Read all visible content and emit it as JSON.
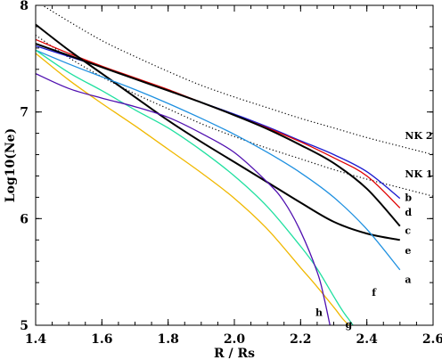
{
  "chart_data": {
    "type": "line",
    "title": "",
    "xlabel": "R / Rs",
    "ylabel": "Log10(Ne)",
    "xlim": [
      1.4,
      2.6
    ],
    "ylim": [
      5,
      8
    ],
    "xticks": [
      1.4,
      1.6,
      1.8,
      2.0,
      2.2,
      2.4,
      2.6
    ],
    "xtick_labels": [
      "1.4",
      "1.6",
      "1.8",
      "2.0",
      "2.2",
      "2.4",
      "2.6"
    ],
    "yticks": [
      5,
      6,
      7,
      8
    ],
    "ytick_labels": [
      "5",
      "6",
      "7",
      "8"
    ],
    "grid": false,
    "legend": "none",
    "series": [
      {
        "label": "NK 2",
        "color": "#000000",
        "dash": "dotted",
        "width": 1.2,
        "x": [
          1.4,
          1.5,
          1.6,
          1.7,
          1.8,
          1.9,
          2.0,
          2.1,
          2.2,
          2.3,
          2.4,
          2.5,
          2.6
        ],
        "y": [
          8.04,
          7.85,
          7.67,
          7.52,
          7.38,
          7.25,
          7.14,
          7.04,
          6.94,
          6.85,
          6.76,
          6.68,
          6.6
        ]
      },
      {
        "label": "NK 1",
        "color": "#000000",
        "dash": "dotted",
        "width": 1.2,
        "x": [
          1.4,
          1.5,
          1.6,
          1.7,
          1.8,
          1.9,
          2.0,
          2.1,
          2.2,
          2.3,
          2.4,
          2.5,
          2.6
        ],
        "y": [
          7.72,
          7.51,
          7.33,
          7.17,
          7.03,
          6.89,
          6.77,
          6.66,
          6.56,
          6.46,
          6.37,
          6.29,
          6.21
        ]
      },
      {
        "label": "b",
        "color": "#1a1ad0",
        "width": 1.3,
        "x": [
          1.4,
          1.5,
          1.6,
          1.7,
          1.8,
          1.9,
          2.0,
          2.1,
          2.2,
          2.3,
          2.4,
          2.5
        ],
        "y": [
          7.62,
          7.52,
          7.42,
          7.31,
          7.2,
          7.09,
          6.98,
          6.86,
          6.73,
          6.6,
          6.44,
          6.19
        ]
      },
      {
        "label": "d",
        "color": "#e00000",
        "width": 1.3,
        "x": [
          1.4,
          1.5,
          1.6,
          1.7,
          1.8,
          1.9,
          2.0,
          2.1,
          2.2,
          2.3,
          2.4,
          2.5
        ],
        "y": [
          7.68,
          7.55,
          7.43,
          7.32,
          7.21,
          7.09,
          6.97,
          6.85,
          6.72,
          6.57,
          6.4,
          6.1
        ]
      },
      {
        "label": "c",
        "color": "#000000",
        "width": 2.0,
        "x": [
          1.4,
          1.5,
          1.6,
          1.7,
          1.8,
          1.9,
          2.0,
          2.1,
          2.2,
          2.3,
          2.4,
          2.5
        ],
        "y": [
          7.64,
          7.53,
          7.42,
          7.31,
          7.2,
          7.09,
          6.97,
          6.84,
          6.69,
          6.52,
          6.28,
          5.93
        ]
      },
      {
        "label": "e",
        "color": "#000000",
        "width": 2.0,
        "x": [
          1.4,
          1.5,
          1.6,
          1.7,
          1.8,
          1.9,
          2.0,
          2.1,
          2.2,
          2.3,
          2.4,
          2.5
        ],
        "y": [
          7.82,
          7.58,
          7.36,
          7.14,
          6.92,
          6.72,
          6.53,
          6.34,
          6.15,
          5.97,
          5.86,
          5.8
        ]
      },
      {
        "label": "a",
        "color": "#1e90e0",
        "width": 1.3,
        "x": [
          1.4,
          1.5,
          1.6,
          1.7,
          1.8,
          1.9,
          2.0,
          2.1,
          2.2,
          2.3,
          2.4,
          2.5
        ],
        "y": [
          7.58,
          7.45,
          7.33,
          7.21,
          7.08,
          6.94,
          6.79,
          6.62,
          6.43,
          6.2,
          5.9,
          5.52
        ]
      },
      {
        "label": "f",
        "color": "#20e0a0",
        "width": 1.3,
        "x": [
          1.4,
          1.5,
          1.6,
          1.7,
          1.8,
          1.9,
          2.0,
          2.1,
          2.2,
          2.25,
          2.3,
          2.33,
          2.36,
          2.38
        ],
        "y": [
          7.58,
          7.37,
          7.2,
          7.02,
          6.85,
          6.64,
          6.4,
          6.11,
          5.74,
          5.53,
          5.27,
          5.12,
          4.99,
          4.85
        ]
      },
      {
        "label": "g",
        "color": "#f0b800",
        "width": 1.3,
        "x": [
          1.4,
          1.5,
          1.6,
          1.7,
          1.8,
          1.9,
          2.0,
          2.1,
          2.2,
          2.25,
          2.3,
          2.33,
          2.36
        ],
        "y": [
          7.55,
          7.3,
          7.08,
          6.87,
          6.65,
          6.43,
          6.19,
          5.9,
          5.54,
          5.36,
          5.17,
          5.05,
          4.96
        ]
      },
      {
        "label": "h",
        "color": "#5010b0",
        "width": 1.3,
        "x": [
          1.4,
          1.5,
          1.6,
          1.7,
          1.8,
          1.9,
          2.0,
          2.1,
          2.15,
          2.2,
          2.25,
          2.27,
          2.29
        ],
        "y": [
          7.36,
          7.22,
          7.13,
          7.05,
          6.95,
          6.8,
          6.62,
          6.34,
          6.16,
          5.88,
          5.5,
          5.27,
          4.98
        ]
      }
    ],
    "annotations": [
      {
        "text": "NK 2",
        "x": 2.515,
        "y": 6.78
      },
      {
        "text": "NK 1",
        "x": 2.515,
        "y": 6.42
      },
      {
        "text": "b",
        "x": 2.515,
        "y": 6.2
      },
      {
        "text": "d",
        "x": 2.515,
        "y": 6.06
      },
      {
        "text": "c",
        "x": 2.515,
        "y": 5.89
      },
      {
        "text": "e",
        "x": 2.515,
        "y": 5.7
      },
      {
        "text": "a",
        "x": 2.515,
        "y": 5.43
      },
      {
        "text": "f",
        "x": 2.415,
        "y": 5.31
      },
      {
        "text": "g",
        "x": 2.335,
        "y": 5.01
      },
      {
        "text": "h",
        "x": 2.245,
        "y": 5.12
      }
    ]
  }
}
